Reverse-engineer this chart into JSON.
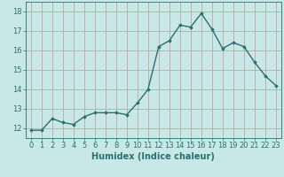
{
  "x": [
    0,
    1,
    2,
    3,
    4,
    5,
    6,
    7,
    8,
    9,
    10,
    11,
    12,
    13,
    14,
    15,
    16,
    17,
    18,
    19,
    20,
    21,
    22,
    23
  ],
  "y": [
    11.9,
    11.9,
    12.5,
    12.3,
    12.2,
    12.6,
    12.8,
    12.8,
    12.8,
    12.7,
    13.3,
    14.0,
    16.2,
    16.5,
    17.3,
    17.2,
    17.9,
    17.1,
    16.1,
    16.4,
    16.2,
    15.4,
    14.7,
    14.2
  ],
  "line_color": "#2d6e6e",
  "marker": "D",
  "marker_size": 1.8,
  "bg_color": "#c8e8e8",
  "grid_color": "#c09898",
  "xlabel": "Humidex (Indice chaleur)",
  "ylim": [
    11.5,
    18.5
  ],
  "xlim": [
    -0.5,
    23.5
  ],
  "yticks": [
    12,
    13,
    14,
    15,
    16,
    17,
    18
  ],
  "xticks": [
    0,
    1,
    2,
    3,
    4,
    5,
    6,
    7,
    8,
    9,
    10,
    11,
    12,
    13,
    14,
    15,
    16,
    17,
    18,
    19,
    20,
    21,
    22,
    23
  ],
  "tick_label_color": "#2d6e6e",
  "xlabel_fontsize": 7.0,
  "tick_fontsize": 6.0,
  "linewidth": 1.0
}
